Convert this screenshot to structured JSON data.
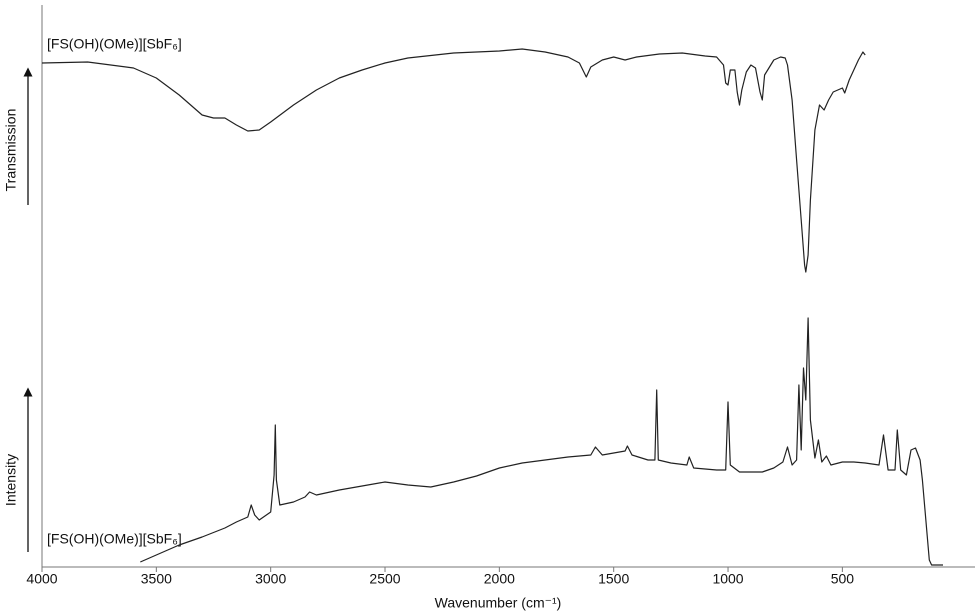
{
  "chart_data": {
    "type": "line",
    "xlabel": "Wavenumber (cm⁻¹)",
    "y_labels": [
      "Transmission",
      "Intensity"
    ],
    "xlim": [
      4000,
      -80
    ],
    "ylim": [
      0,
      562
    ],
    "xticks": [
      4000,
      3500,
      3000,
      2500,
      2000,
      1500,
      1000,
      500
    ],
    "series": [
      {
        "name": "[FS(OH)(OMe)][SbF₆]",
        "color": "#222222",
        "x": [
          4000,
          3800,
          3600,
          3500,
          3400,
          3300,
          3250,
          3200,
          3150,
          3100,
          3050,
          3000,
          2900,
          2800,
          2700,
          2600,
          2500,
          2400,
          2200,
          2000,
          1900,
          1800,
          1700,
          1650,
          1620,
          1600,
          1550,
          1500,
          1450,
          1400,
          1300,
          1200,
          1100,
          1050,
          1020,
          1010,
          1000,
          990,
          970,
          960,
          950,
          940,
          920,
          900,
          880,
          860,
          850,
          840,
          800,
          770,
          750,
          740,
          720,
          700,
          680,
          665,
          660,
          650,
          640,
          620,
          600,
          580,
          560,
          540,
          520,
          500,
          490,
          470,
          450,
          430,
          410,
          400
        ],
        "values": [
          504,
          505,
          499,
          489,
          472,
          452,
          449,
          449,
          442,
          436,
          437,
          445,
          462,
          477,
          489,
          497,
          504,
          509,
          514,
          516,
          518,
          515,
          510,
          504,
          490,
          500,
          507,
          510,
          507,
          510,
          513,
          514,
          511,
          510,
          502,
          484,
          482,
          497,
          497,
          475,
          462,
          477,
          495,
          502,
          499,
          475,
          467,
          492,
          507,
          510,
          509,
          502,
          467,
          407,
          347,
          302,
          295,
          312,
          367,
          437,
          462,
          457,
          467,
          475,
          477,
          479,
          474,
          487,
          497,
          507,
          515,
          512
        ]
      },
      {
        "name": "[FS(OH)(OMe)][SbF₆]",
        "color": "#222222",
        "x": [
          3570,
          3500,
          3400,
          3300,
          3200,
          3150,
          3100,
          3085,
          3070,
          3050,
          3000,
          2985,
          2980,
          2975,
          2960,
          2900,
          2850,
          2830,
          2800,
          2700,
          2600,
          2500,
          2400,
          2300,
          2200,
          2100,
          2000,
          1900,
          1800,
          1700,
          1600,
          1580,
          1550,
          1450,
          1440,
          1420,
          1350,
          1320,
          1312,
          1305,
          1250,
          1180,
          1170,
          1150,
          1050,
          1010,
          1000,
          990,
          950,
          850,
          800,
          760,
          740,
          720,
          700,
          690,
          680,
          670,
          660,
          650,
          640,
          620,
          605,
          590,
          570,
          550,
          500,
          450,
          400,
          340,
          320,
          300,
          270,
          260,
          245,
          220,
          200,
          180,
          160,
          150,
          120,
          110,
          60
        ],
        "values": [
          5,
          12,
          22,
          30,
          39,
          45,
          50,
          62,
          52,
          47,
          55,
          92,
          142,
          87,
          62,
          65,
          70,
          75,
          72,
          77,
          81,
          85,
          82,
          80,
          85,
          91,
          99,
          104,
          107,
          110,
          112,
          120,
          112,
          116,
          121,
          112,
          107,
          107,
          177,
          107,
          104,
          102,
          110,
          99,
          97,
          97,
          165,
          102,
          95,
          95,
          99,
          105,
          120,
          102,
          107,
          182,
          117,
          199,
          167,
          249,
          147,
          109,
          127,
          105,
          111,
          102,
          105,
          105,
          104,
          102,
          132,
          97,
          97,
          137,
          97,
          92,
          117,
          119,
          107,
          87,
          7,
          2,
          2
        ]
      }
    ]
  }
}
